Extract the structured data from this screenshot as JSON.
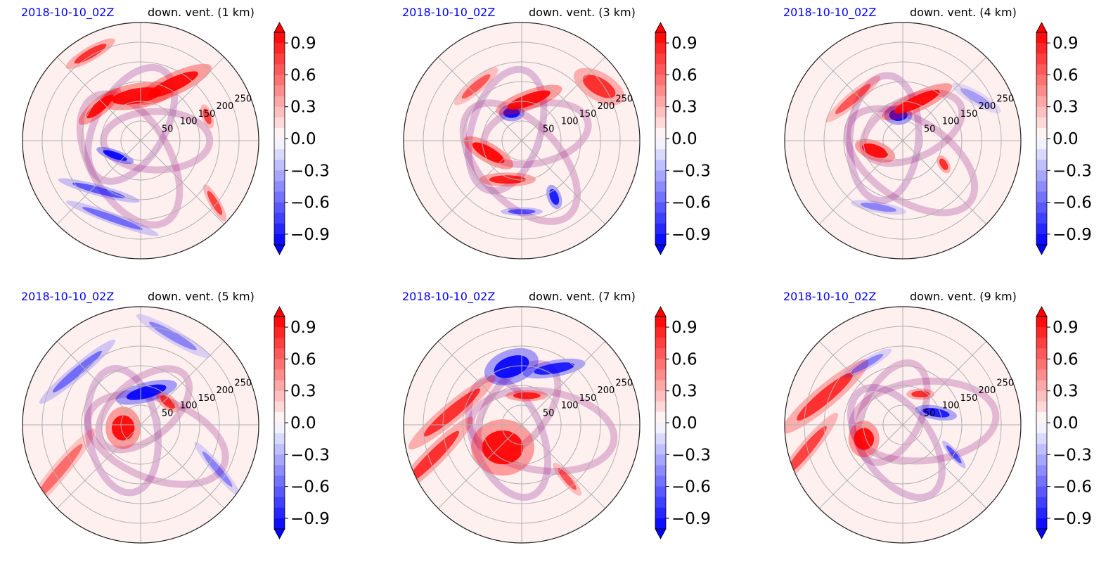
{
  "colorbar": {
    "ticks": [
      "0.9",
      "0.6",
      "0.3",
      "0.0",
      "−0.3",
      "−0.6",
      "−0.9"
    ],
    "vmin": -1.0,
    "vmax": 1.0,
    "colors": {
      "positive": "#ff0000",
      "negative": "#0000ff",
      "zero": "#ffffff"
    }
  },
  "chart_data": [
    {
      "type": "heatmap",
      "projection": "polar",
      "date": "2018-10-10_02Z",
      "title": "down. vent. (1 km)",
      "radial_ticks": [
        "50",
        "100",
        "150",
        "200",
        "250"
      ],
      "grid": true
    },
    {
      "type": "heatmap",
      "projection": "polar",
      "date": "2018-10-10_02Z",
      "title": "down. vent. (3 km)",
      "radial_ticks": [
        "50",
        "100",
        "150",
        "200",
        "250"
      ],
      "grid": true
    },
    {
      "type": "heatmap",
      "projection": "polar",
      "date": "2018-10-10_02Z",
      "title": "down. vent. (4 km)",
      "radial_ticks": [
        "50",
        "100",
        "150",
        "200",
        "250"
      ],
      "grid": true
    },
    {
      "type": "heatmap",
      "projection": "polar",
      "date": "2018-10-10_02Z",
      "title": "down. vent. (5 km)",
      "radial_ticks": [
        "50",
        "100",
        "150",
        "200",
        "250"
      ],
      "grid": true
    },
    {
      "type": "heatmap",
      "projection": "polar",
      "date": "2018-10-10_02Z",
      "title": "down. vent. (7 km)",
      "radial_ticks": [
        "50",
        "100",
        "150",
        "200",
        "250"
      ],
      "grid": true
    },
    {
      "type": "heatmap",
      "projection": "polar",
      "date": "2018-10-10_02Z",
      "title": "down. vent. (9 km)",
      "radial_ticks": [
        "50",
        "100",
        "150",
        "200",
        "250"
      ],
      "grid": true
    }
  ]
}
